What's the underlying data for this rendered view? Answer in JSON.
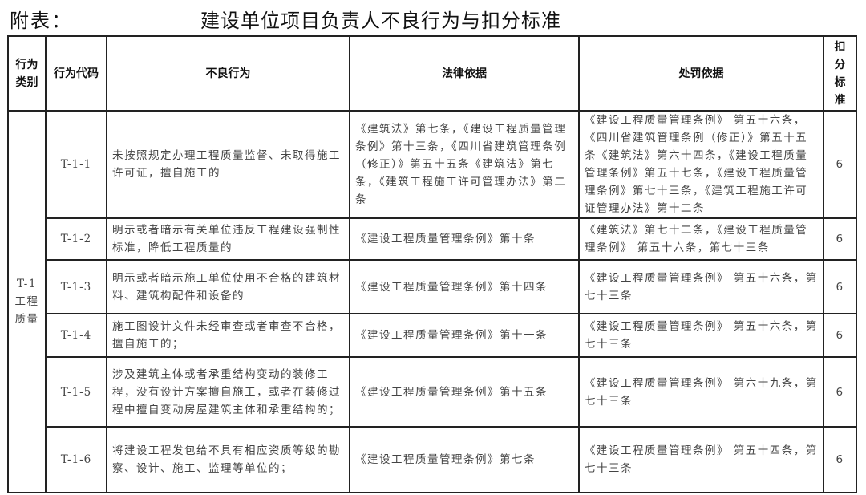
{
  "title": {
    "prefix": "附表：",
    "main": "建设单位项目负责人不良行为与扣分标准"
  },
  "headers": [
    "行为类别",
    "行为代码",
    "不良行为",
    "法律依据",
    "处罚依据",
    "扣分标准"
  ],
  "category": "T-1 工程质量",
  "rows": [
    {
      "code": "T-1-1",
      "behavior": "未按照规定办理工程质量监督、未取得施工许可证，擅自施工的",
      "law": "《建筑法》第七条，《建设工程质量管理条例》第十三条，《四川省建筑管理条例（修正）》第五十五条《建筑法》第七条，《建筑工程施工许可管理办法》第二条",
      "penalty": "《建设工程质量管理条例》 第五十六条，《四川省建筑管理条例（修正）》第五十五条《建筑法》第六十四条，《建设工程质量管理条例》第五十七条，《建设工程质量管理条例》第七十三条，《建筑工程施工许可证管理办法》第十二条",
      "score": "6"
    },
    {
      "code": "T-1-2",
      "behavior": "明示或者暗示有关单位违反工程建设强制性标准，降低工程质量的",
      "law": "《建设工程质量管理条例》第十条",
      "penalty": "《建筑法》第七十二条，《建设工程质量管理条例》 第五十六条，第七十三条",
      "score": "6"
    },
    {
      "code": "T-1-3",
      "behavior": "明示或者暗示施工单位使用不合格的建筑材料、建筑构配件和设备的",
      "law": "《建设工程质量管理条例》第十四条",
      "penalty": "《建设工程质量管理条例》 第五十六条，第七十三条",
      "score": "6"
    },
    {
      "code": "T-1-4",
      "behavior": "施工图设计文件未经审查或者审查不合格，擅自施工的；",
      "law": "《建设工程质量管理条例》第十一条",
      "penalty": "《建设工程质量管理条例》 第五十六条，第七十三条",
      "score": "6"
    },
    {
      "code": "T-1-5",
      "behavior": "涉及建筑主体或者承重结构变动的装修工程，没有设计方案擅自施工，或者在装修过程中擅自变动房屋建筑主体和承重结构的；",
      "law": "《建设工程质量管理条例》第十五条",
      "penalty": "《建设工程质量管理条例》 第六十九条，第七十三条",
      "score": "6"
    },
    {
      "code": "T-1-6",
      "behavior": "将建设工程发包给不具有相应资质等级的勘察、设计、施工、监理等单位的；",
      "law": "《建设工程质量管理条例》第七条",
      "penalty": "《建设工程质量管理条例》 第五十四条，第七十三条",
      "score": "6"
    }
  ]
}
